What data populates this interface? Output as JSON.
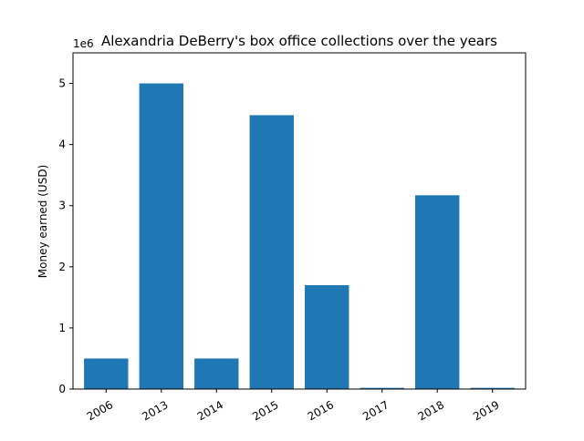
{
  "chart_data": {
    "type": "bar",
    "title": "Alexandria DeBerry's box office collections over the years",
    "xlabel": "",
    "ylabel": "Money earned (USD)",
    "scale_label": "1e6",
    "categories": [
      "2006",
      "2013",
      "2014",
      "2015",
      "2016",
      "2017",
      "2018",
      "2019"
    ],
    "values": [
      500000,
      5000000,
      500000,
      4480000,
      1700000,
      20000,
      3170000,
      20000
    ],
    "ylim": [
      0,
      5500000
    ],
    "yticks": [
      0,
      1,
      2,
      3,
      4,
      5
    ],
    "grid": false,
    "legend": "none",
    "bar_color": "#1f77b4"
  }
}
